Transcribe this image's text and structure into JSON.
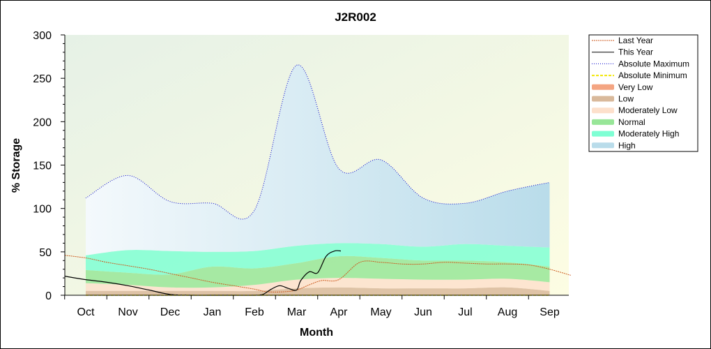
{
  "chart_data": {
    "type": "area",
    "title": "J2R002",
    "xlabel": "Month",
    "ylabel": "% Storage",
    "ylim": [
      0,
      300
    ],
    "yticks": [
      "0",
      "50",
      "100",
      "150",
      "200",
      "250",
      "300"
    ],
    "categories": [
      "Oct",
      "Nov",
      "Dec",
      "Jan",
      "Feb",
      "Mar",
      "Apr",
      "May",
      "Jun",
      "Jul",
      "Aug",
      "Sep"
    ],
    "legend_position": "right",
    "bands": [
      {
        "name": "Very Low",
        "color": "#f4a582",
        "lower": [
          0,
          0,
          0,
          0,
          0,
          0,
          0,
          0,
          0,
          0,
          0,
          0
        ],
        "upper": [
          0,
          0,
          0,
          0,
          0,
          0,
          0,
          0,
          0,
          0,
          0,
          0
        ]
      },
      {
        "name": "Low",
        "color": "#d9b99b",
        "lower": [
          0,
          0,
          0,
          0,
          0,
          0,
          0,
          0,
          0,
          0,
          0,
          0
        ],
        "upper": [
          5,
          5,
          5,
          5,
          5,
          8,
          9,
          8,
          8,
          8,
          9,
          5
        ]
      },
      {
        "name": "Moderately Low",
        "color": "#fde0cc",
        "lower": [
          5,
          5,
          5,
          5,
          5,
          8,
          9,
          8,
          8,
          8,
          9,
          5
        ],
        "upper": [
          14,
          12,
          9,
          9,
          12,
          18,
          20,
          19,
          18,
          18,
          19,
          15
        ]
      },
      {
        "name": "Normal",
        "color": "#98e698",
        "lower": [
          14,
          12,
          9,
          9,
          12,
          18,
          20,
          19,
          18,
          18,
          19,
          15
        ],
        "upper": [
          29,
          26,
          24,
          33,
          31,
          37,
          45,
          43,
          40,
          40,
          38,
          33
        ]
      },
      {
        "name": "Moderately High",
        "color": "#7fffd4",
        "lower": [
          29,
          26,
          24,
          33,
          31,
          37,
          45,
          43,
          40,
          40,
          38,
          33
        ],
        "upper": [
          46,
          52,
          51,
          50,
          51,
          57,
          60,
          59,
          56,
          59,
          57,
          55
        ]
      },
      {
        "name": "High",
        "color": "#b9dcea",
        "lower": [
          46,
          52,
          51,
          50,
          51,
          57,
          60,
          59,
          56,
          59,
          57,
          55
        ],
        "upper": [
          112,
          138,
          108,
          106,
          98,
          265,
          146,
          156,
          112,
          106,
          120,
          130
        ]
      }
    ],
    "series": [
      {
        "name": "Last Year",
        "color": "#cc5a1e",
        "x": [
          -0.5,
          0,
          0.5,
          1,
          1.5,
          2,
          2.5,
          3,
          3.5,
          4,
          4.3,
          4.7,
          5,
          5.3,
          5.6,
          6,
          6.5,
          7,
          7.5,
          8,
          8.5,
          9,
          9.5,
          10,
          10.5,
          11,
          11.5
        ],
        "values": [
          46,
          43,
          38,
          34,
          30,
          25,
          20,
          15,
          11,
          7,
          4,
          4,
          6,
          12,
          17,
          18,
          38,
          38,
          36,
          36,
          38,
          37,
          36,
          36,
          35,
          30,
          23
        ]
      },
      {
        "name": "This Year",
        "color": "#000000",
        "x": [
          -0.5,
          0,
          0.5,
          1,
          1.5,
          2,
          2.5,
          3,
          3.5,
          4,
          4.2,
          4.4,
          4.6,
          4.8,
          5,
          5.1,
          5.3,
          5.5,
          5.7,
          5.9,
          6.05
        ],
        "values": [
          22,
          18,
          15,
          11,
          6,
          1,
          0,
          0,
          0,
          0,
          1,
          7,
          11,
          8,
          6,
          17,
          27,
          26,
          45,
          51,
          51
        ]
      },
      {
        "name": "Absolute Maximum",
        "color": "#0000cc",
        "x": [
          0,
          1,
          2,
          3,
          4,
          5,
          6,
          7,
          8,
          9,
          10,
          11
        ],
        "values": [
          112,
          138,
          108,
          106,
          98,
          265,
          146,
          156,
          112,
          106,
          120,
          130
        ]
      },
      {
        "name": "Absolute Minimum",
        "color": "#f2e600",
        "x": [
          0,
          1,
          2,
          3,
          4,
          5,
          6,
          7,
          8,
          9,
          10,
          11
        ],
        "values": [
          0,
          0,
          0,
          0,
          0,
          0,
          0,
          0,
          0,
          0,
          0,
          0
        ]
      }
    ],
    "legend": [
      "Last Year",
      "This Year",
      "Absolute Maximum",
      "Absolute Minimum",
      "Very Low",
      "Low",
      "Moderately Low",
      "Normal",
      "Moderately High",
      "High"
    ]
  }
}
